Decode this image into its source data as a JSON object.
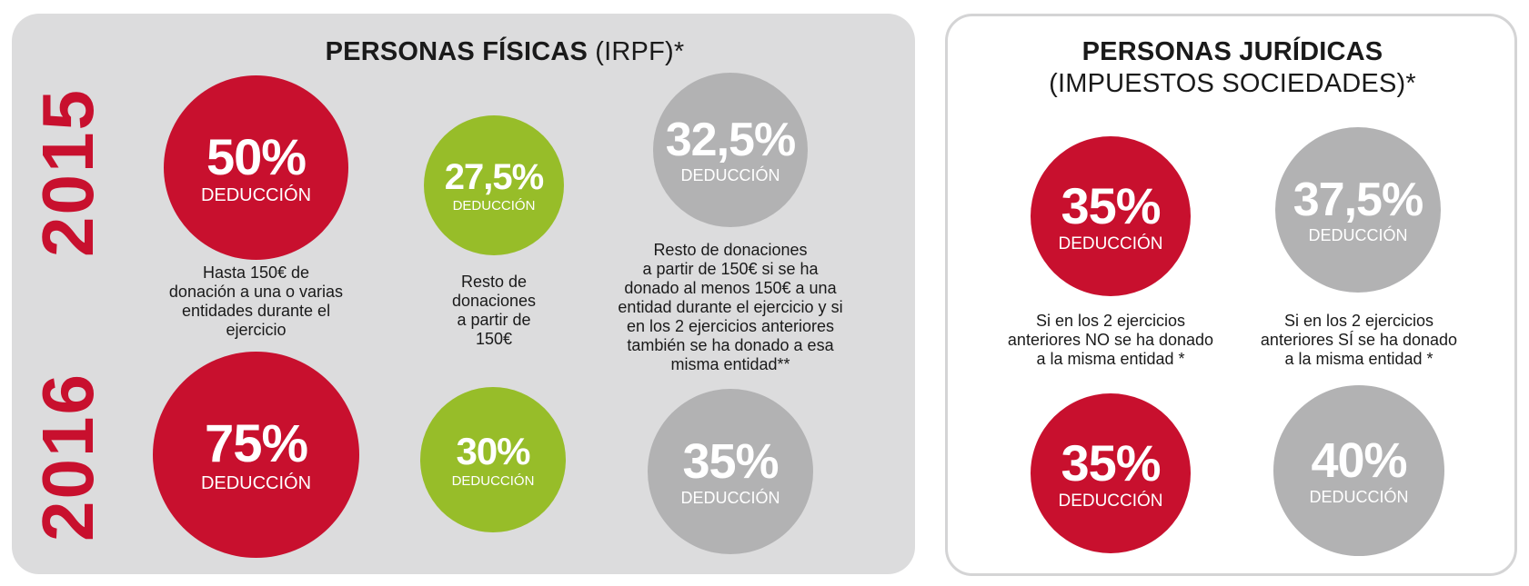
{
  "left": {
    "title_bold": "PERSONAS FÍSICAS",
    "title_rest": " (IRPF)",
    "title_star": "*",
    "years": [
      "2015",
      "2016"
    ],
    "row2015": [
      {
        "pct": "50%",
        "label": "DEDUCCIÓN"
      },
      {
        "pct": "27,5%",
        "label": "DEDUCCIÓN"
      },
      {
        "pct": "32,5%",
        "label": "DEDUCCIÓN"
      }
    ],
    "row2016": [
      {
        "pct": "75%",
        "label": "DEDUCCIÓN"
      },
      {
        "pct": "30%",
        "label": "DEDUCCIÓN"
      },
      {
        "pct": "35%",
        "label": "DEDUCCIÓN"
      }
    ],
    "descriptions": [
      [
        "Hasta 150€ de",
        "donación a una o varias",
        "entidades durante el",
        "ejercicio"
      ],
      [
        "Resto de",
        "donaciones",
        "a partir de",
        "150€"
      ],
      [
        "Resto de donaciones",
        "a partir de 150€ si se ha",
        "donado al menos 150€ a una",
        "entidad durante el ejercicio y si",
        "en los 2 ejercicios anteriores",
        "también se ha donado a esa",
        "misma entidad**"
      ]
    ]
  },
  "right": {
    "title_line1": "PERSONAS JURÍDICAS",
    "title_line2": "(IMPUESTOS SOCIEDADES)",
    "title_star": "*",
    "row1": [
      {
        "pct": "35%",
        "label": "DEDUCCIÓN"
      },
      {
        "pct": "37,5%",
        "label": "DEDUCCIÓN"
      }
    ],
    "row2": [
      {
        "pct": "35%",
        "label": "DEDUCCIÓN"
      },
      {
        "pct": "40%",
        "label": "DEDUCCIÓN"
      }
    ],
    "descriptions": [
      [
        "Si en los 2 ejercicios",
        "anteriores NO se ha donado",
        "a la misma entidad *"
      ],
      [
        "Si en los 2 ejercicios",
        "anteriores SÍ se ha donado",
        "a la misma entidad *"
      ]
    ]
  },
  "colors": {
    "red": "#c8102e",
    "green": "#97bd29",
    "grey": "#b2b2b3",
    "panel_grey": "#dcdcdd"
  }
}
